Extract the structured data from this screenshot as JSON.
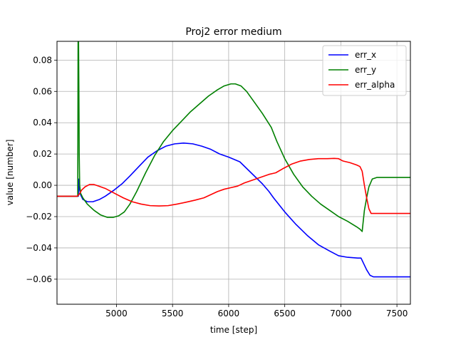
{
  "chart_data": {
    "type": "line",
    "title": "Proj2 error medium",
    "xlabel": "time [step]",
    "ylabel": "value [number]",
    "xlim": [
      4470,
      7620
    ],
    "ylim": [
      -0.076,
      0.092
    ],
    "xticks": [
      5000,
      5500,
      6000,
      6500,
      7000,
      7500
    ],
    "yticks": [
      -0.06,
      -0.04,
      -0.02,
      0.0,
      0.02,
      0.04,
      0.06,
      0.08
    ],
    "xtick_labels": [
      "5000",
      "5500",
      "6000",
      "6500",
      "7000",
      "7500"
    ],
    "ytick_labels": [
      "−0.06",
      "−0.04",
      "−0.02",
      "0.00",
      "0.02",
      "0.04",
      "0.06",
      "0.08"
    ],
    "grid": true,
    "legend_position": "top-right",
    "series": [
      {
        "name": "err_x",
        "color": "#0000ff",
        "x": [
          4470,
          4660,
          4665,
          4670,
          4680,
          4700,
          4740,
          4790,
          4850,
          4900,
          4980,
          5050,
          5120,
          5200,
          5280,
          5360,
          5440,
          5520,
          5600,
          5680,
          5760,
          5840,
          5920,
          6000,
          6100,
          6200,
          6300,
          6360,
          6400,
          6500,
          6600,
          6700,
          6800,
          6900,
          6980,
          7060,
          7150,
          7180,
          7200,
          7230,
          7260,
          7290,
          7350,
          7450,
          7620
        ],
        "y": [
          -0.007,
          -0.007,
          0.004,
          -0.002,
          -0.006,
          -0.009,
          -0.0105,
          -0.0105,
          -0.009,
          -0.007,
          -0.003,
          0.001,
          0.006,
          0.012,
          0.018,
          0.022,
          0.025,
          0.0265,
          0.027,
          0.0265,
          0.025,
          0.023,
          0.02,
          0.018,
          0.015,
          0.008,
          0.001,
          -0.004,
          -0.008,
          -0.017,
          -0.025,
          -0.032,
          -0.038,
          -0.042,
          -0.045,
          -0.046,
          -0.0465,
          -0.0465,
          -0.0495,
          -0.054,
          -0.0575,
          -0.0585,
          -0.0585,
          -0.0585,
          -0.0585
        ]
      },
      {
        "name": "err_y",
        "color": "#008000",
        "x": [
          4470,
          4655,
          4658,
          4662,
          4665,
          4668,
          4672,
          4680,
          4700,
          4740,
          4800,
          4860,
          4920,
          4970,
          5020,
          5070,
          5120,
          5180,
          5260,
          5340,
          5420,
          5500,
          5580,
          5660,
          5740,
          5820,
          5900,
          5960,
          6020,
          6060,
          6110,
          6160,
          6220,
          6300,
          6380,
          6430,
          6500,
          6580,
          6660,
          6740,
          6820,
          6900,
          6980,
          7060,
          7140,
          7170,
          7190,
          7210,
          7230,
          7250,
          7280,
          7320,
          7400,
          7620
        ],
        "y": [
          -0.007,
          -0.007,
          0.092,
          0.092,
          0.06,
          0.02,
          0.0,
          -0.005,
          -0.008,
          -0.012,
          -0.016,
          -0.019,
          -0.0205,
          -0.0205,
          -0.0195,
          -0.017,
          -0.012,
          -0.004,
          0.008,
          0.019,
          0.028,
          0.035,
          0.041,
          0.047,
          0.052,
          0.057,
          0.061,
          0.0635,
          0.0648,
          0.0648,
          0.0635,
          0.06,
          0.054,
          0.046,
          0.037,
          0.028,
          0.017,
          0.007,
          -0.001,
          -0.007,
          -0.012,
          -0.016,
          -0.02,
          -0.023,
          -0.0265,
          -0.028,
          -0.0295,
          -0.016,
          -0.008,
          -0.001,
          0.004,
          0.005,
          0.005,
          0.005
        ]
      },
      {
        "name": "err_alpha",
        "color": "#ff0000",
        "x": [
          4470,
          4650,
          4670,
          4690,
          4720,
          4760,
          4800,
          4840,
          4900,
          4980,
          5060,
          5140,
          5220,
          5300,
          5380,
          5460,
          5540,
          5620,
          5700,
          5780,
          5840,
          5900,
          5960,
          6020,
          6080,
          6140,
          6200,
          6280,
          6360,
          6420,
          6480,
          6560,
          6640,
          6720,
          6800,
          6880,
          6940,
          6980,
          7020,
          7080,
          7140,
          7170,
          7190,
          7210,
          7230,
          7250,
          7270,
          7300,
          7400,
          7620
        ],
        "y": [
          -0.007,
          -0.007,
          -0.0055,
          -0.003,
          -0.001,
          0.0005,
          0.0005,
          -0.0005,
          -0.002,
          -0.005,
          -0.008,
          -0.0105,
          -0.012,
          -0.013,
          -0.0132,
          -0.013,
          -0.012,
          -0.0108,
          -0.0095,
          -0.008,
          -0.006,
          -0.004,
          -0.0025,
          -0.0015,
          -0.0005,
          0.0015,
          0.003,
          0.005,
          0.007,
          0.008,
          0.0105,
          0.0135,
          0.0155,
          0.0165,
          0.017,
          0.017,
          0.0172,
          0.017,
          0.0155,
          0.0145,
          0.013,
          0.012,
          0.009,
          0.0,
          -0.008,
          -0.015,
          -0.018,
          -0.018,
          -0.018,
          -0.018
        ]
      }
    ]
  }
}
